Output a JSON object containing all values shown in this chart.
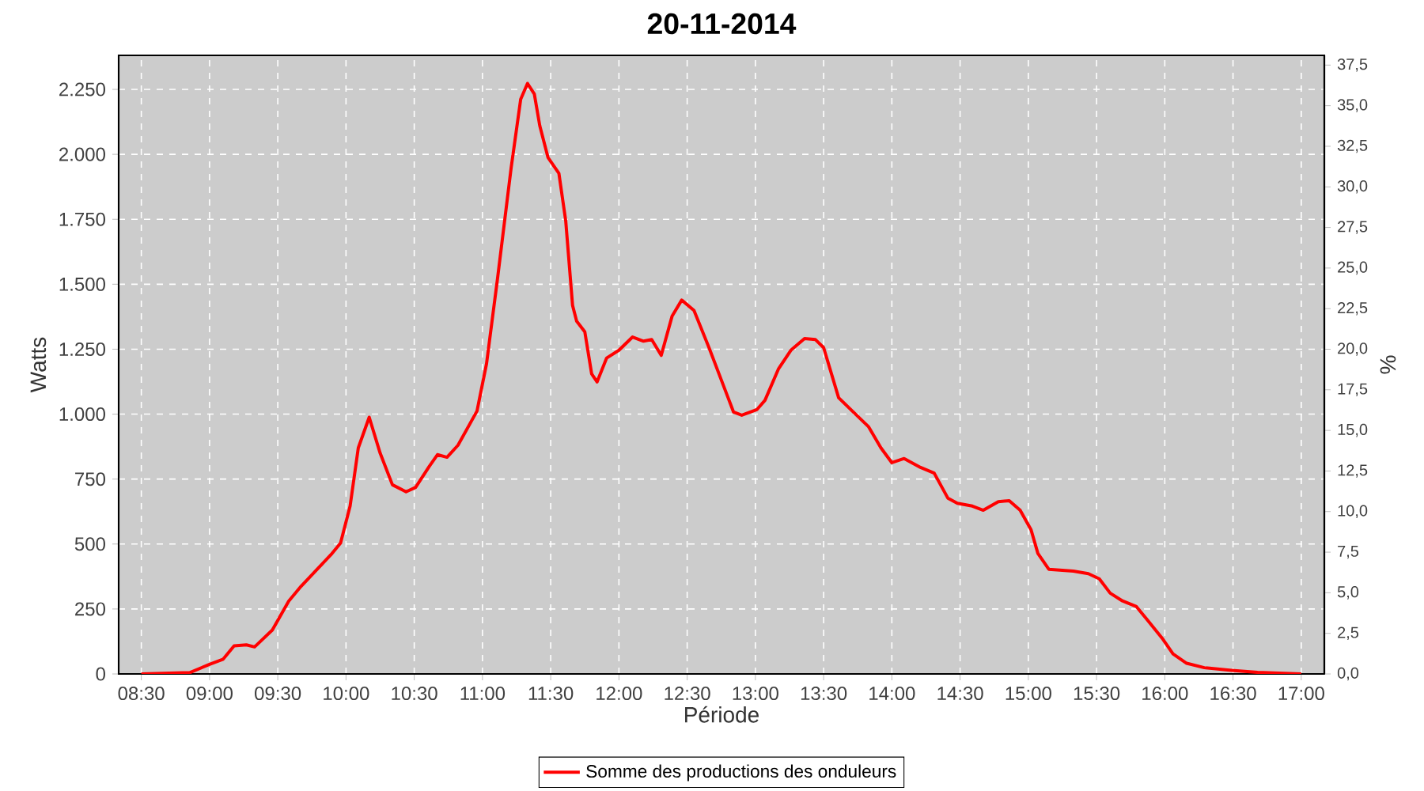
{
  "chart_data": {
    "type": "line",
    "title": "20-11-2014",
    "xlabel": "Période",
    "ylabel": "Watts",
    "y2label": "%",
    "xlim": [
      8.334,
      17.169
    ],
    "ylim": [
      0,
      2381
    ],
    "y2lim": [
      0,
      38.1
    ],
    "xticks": [
      {
        "value": 8.5,
        "label": "08:30"
      },
      {
        "value": 9,
        "label": "09:00"
      },
      {
        "value": 9.5,
        "label": "09:30"
      },
      {
        "value": 10,
        "label": "10:00"
      },
      {
        "value": 10.5,
        "label": "10:30"
      },
      {
        "value": 11,
        "label": "11:00"
      },
      {
        "value": 11.5,
        "label": "11:30"
      },
      {
        "value": 12,
        "label": "12:00"
      },
      {
        "value": 12.5,
        "label": "12:30"
      },
      {
        "value": 13,
        "label": "13:00"
      },
      {
        "value": 13.5,
        "label": "13:30"
      },
      {
        "value": 14,
        "label": "14:00"
      },
      {
        "value": 14.5,
        "label": "14:30"
      },
      {
        "value": 15,
        "label": "15:00"
      },
      {
        "value": 15.5,
        "label": "15:30"
      },
      {
        "value": 16,
        "label": "16:00"
      },
      {
        "value": 16.5,
        "label": "16:30"
      },
      {
        "value": 17,
        "label": "17:00"
      }
    ],
    "yticks": [
      0,
      250,
      500,
      750,
      {
        "value": 1000,
        "label": "1.000"
      },
      {
        "value": 1250,
        "label": "1.250"
      },
      {
        "value": 1500,
        "label": "1.500"
      },
      {
        "value": 1750,
        "label": "1.750"
      },
      {
        "value": 2000,
        "label": "2.000"
      },
      {
        "value": 2250,
        "label": "2.250"
      }
    ],
    "y2ticks": [
      {
        "value": 0,
        "label": "0,0"
      },
      {
        "value": 2.5,
        "label": "2,5"
      },
      {
        "value": 5,
        "label": "5,0"
      },
      {
        "value": 7.5,
        "label": "7,5"
      },
      {
        "value": 10,
        "label": "10,0"
      },
      {
        "value": 12.5,
        "label": "12,5"
      },
      {
        "value": 15,
        "label": "15,0"
      },
      {
        "value": 17.5,
        "label": "17,5"
      },
      {
        "value": 20,
        "label": "20,0"
      },
      {
        "value": 22.5,
        "label": "22,5"
      },
      {
        "value": 25,
        "label": "25,0"
      },
      {
        "value": 27.5,
        "label": "27,5"
      },
      {
        "value": 30,
        "label": "30,0"
      },
      {
        "value": 32.5,
        "label": "32,5"
      },
      {
        "value": 35,
        "label": "35,0"
      },
      {
        "value": 37.5,
        "label": "37,5"
      }
    ],
    "grid": true,
    "legend": "bottom",
    "marker": "none",
    "line_style": "solid",
    "x": [
      8.5,
      8.855,
      9.0,
      9.1,
      9.18,
      9.27,
      9.33,
      9.46,
      9.58,
      9.67,
      9.89,
      9.96,
      10.03,
      10.09,
      10.17,
      10.25,
      10.34,
      10.44,
      10.51,
      10.61,
      10.67,
      10.74,
      10.82,
      10.96,
      11.03,
      11.11,
      11.21,
      11.28,
      11.33,
      11.38,
      11.42,
      11.48,
      11.56,
      11.61,
      11.66,
      11.69,
      11.75,
      11.8,
      11.84,
      11.91,
      12.0,
      12.1,
      12.18,
      12.24,
      12.31,
      12.39,
      12.46,
      12.55,
      12.66,
      12.8,
      12.84,
      12.9,
      13.01,
      13.07,
      13.17,
      13.26,
      13.36,
      13.44,
      13.5,
      13.61,
      13.71,
      13.83,
      13.92,
      14.0,
      14.09,
      14.21,
      14.31,
      14.41,
      14.48,
      14.59,
      14.67,
      14.78,
      14.86,
      14.94,
      15.02,
      15.07,
      15.15,
      15.33,
      15.44,
      15.52,
      15.6,
      15.69,
      15.79,
      15.87,
      15.98,
      16.06,
      16.16,
      16.29,
      16.49,
      16.68,
      17.0
    ],
    "series": [
      {
        "name": "Somme des productions des onduleurs",
        "color": "#ff0000",
        "values": [
          0,
          5,
          37,
          57,
          108,
          112,
          104,
          169,
          280,
          337,
          459,
          504,
          646,
          870,
          988,
          850,
          728,
          701,
          718,
          799,
          844,
          834,
          880,
          1012,
          1195,
          1521,
          1948,
          2212,
          2273,
          2232,
          2110,
          1988,
          1927,
          1744,
          1419,
          1358,
          1317,
          1155,
          1124,
          1216,
          1246,
          1297,
          1281,
          1287,
          1226,
          1378,
          1439,
          1399,
          1256,
          1063,
          1008,
          996,
          1017,
          1053,
          1175,
          1246,
          1291,
          1287,
          1256,
          1063,
          1012,
          951,
          870,
          813,
          829,
          795,
          773,
          677,
          657,
          646,
          630,
          663,
          667,
          630,
          555,
          464,
          403,
          396,
          386,
          366,
          311,
          281,
          260,
          209,
          138,
          77,
          41,
          24,
          14,
          6,
          0
        ]
      }
    ]
  }
}
